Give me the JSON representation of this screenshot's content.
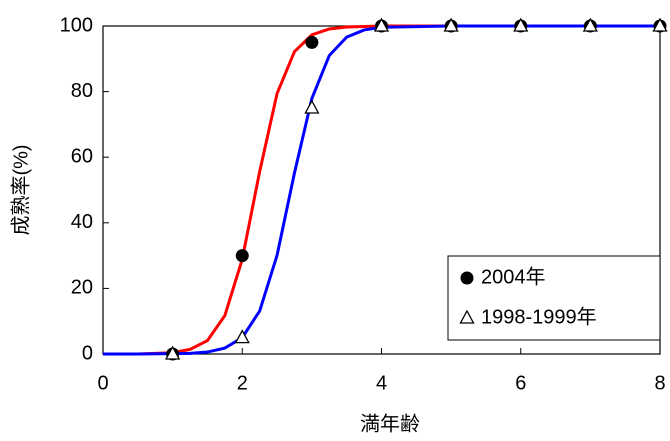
{
  "chart_data": {
    "type": "scatter",
    "x_label": "満年齢",
    "y_label": "成熟率(%)",
    "xlim": [
      0,
      8
    ],
    "xticks": [
      0,
      2,
      4,
      6,
      8
    ],
    "ylim": [
      0,
      100
    ],
    "yticks": [
      0,
      20,
      40,
      60,
      80,
      100
    ],
    "legend_loc": "lower right",
    "series": [
      {
        "name": "2004年",
        "marker": "circle",
        "color": "#000000",
        "x": [
          1,
          2,
          3,
          4,
          5,
          6,
          7,
          8
        ],
        "values": [
          0,
          30,
          95,
          100,
          100,
          100,
          100,
          100
        ]
      },
      {
        "name": "1998-1999年",
        "marker": "triangle",
        "color": "#000000",
        "x": [
          1,
          2,
          3,
          4,
          5,
          6,
          7,
          8
        ],
        "values": [
          0,
          5,
          75,
          100,
          100,
          100,
          100,
          100
        ]
      }
    ],
    "lines": [
      {
        "color": "#ff0000",
        "x": [
          0,
          0.5,
          1,
          1.25,
          1.5,
          1.75,
          2,
          2.25,
          2.5,
          2.75,
          3,
          3.25,
          3.5,
          4,
          5,
          6,
          7,
          8
        ],
        "values": [
          0,
          0,
          0.4,
          1.4,
          4.1,
          11.7,
          28.9,
          55.6,
          79.4,
          92.2,
          97.3,
          99.1,
          99.7,
          100,
          100,
          100,
          100,
          100
        ]
      },
      {
        "color": "#0000ff",
        "x": [
          0,
          0.5,
          1,
          1.25,
          1.5,
          1.75,
          2,
          2.25,
          2.5,
          2.75,
          3,
          3.25,
          3.5,
          3.75,
          4,
          5,
          6,
          7,
          8
        ],
        "values": [
          0,
          0,
          0.1,
          0.2,
          0.6,
          1.8,
          5.0,
          13.1,
          30.1,
          55.2,
          77.9,
          91.0,
          96.6,
          98.8,
          99.6,
          100,
          100,
          100,
          100
        ]
      }
    ]
  }
}
